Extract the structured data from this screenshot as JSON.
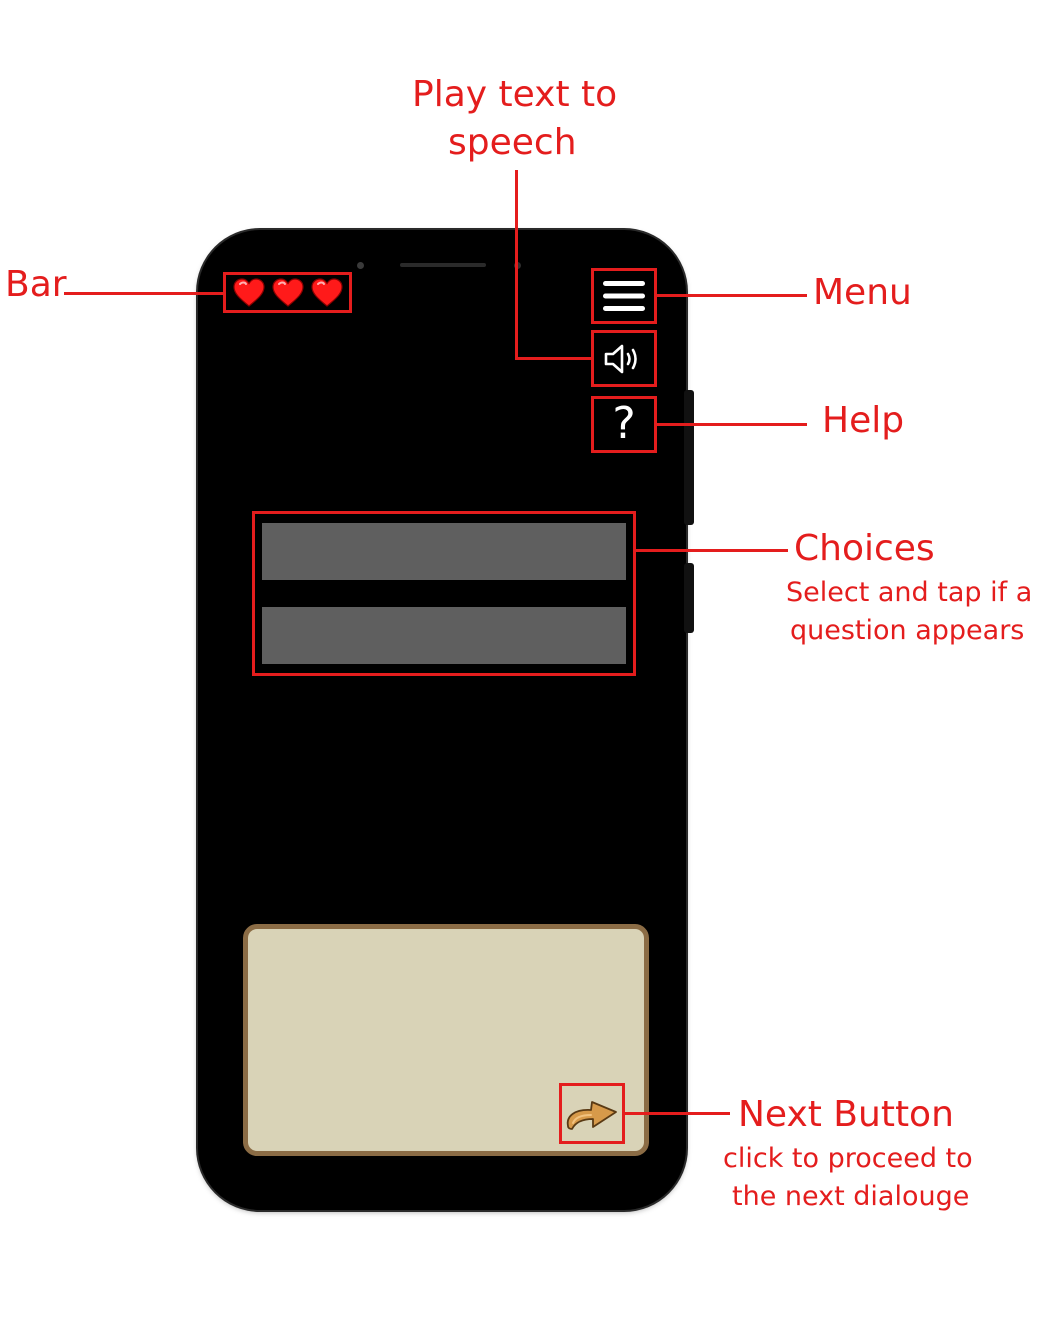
{
  "annotations": {
    "tts_title_line1": "Play text to",
    "tts_title_line2": "speech",
    "bar_label": "Bar",
    "menu_label": "Menu",
    "help_label": "Help",
    "choices_title": "Choices",
    "choices_desc_line1": "Select and tap if a",
    "choices_desc_line2": "question appears",
    "next_title": "Next Button",
    "next_desc_line1": "click to proceed to",
    "next_desc_line2": "the next dialouge"
  },
  "game_ui": {
    "hearts": [
      "heart-icon",
      "heart-icon",
      "heart-icon"
    ],
    "menu_icon": "hamburger-menu-icon",
    "sound_icon": "speaker-icon",
    "help_glyph": "?",
    "choices": [
      "",
      ""
    ],
    "next_icon": "curved-arrow-icon"
  },
  "colors": {
    "annotation": "#e41d1d",
    "phone_body": "#000000",
    "heart": "#ff1a1a",
    "choice": "#5f5f5f",
    "dialogue_fill": "#d9d3b7",
    "dialogue_border": "#8b6c45",
    "next_arrow": "#d79a4a"
  }
}
